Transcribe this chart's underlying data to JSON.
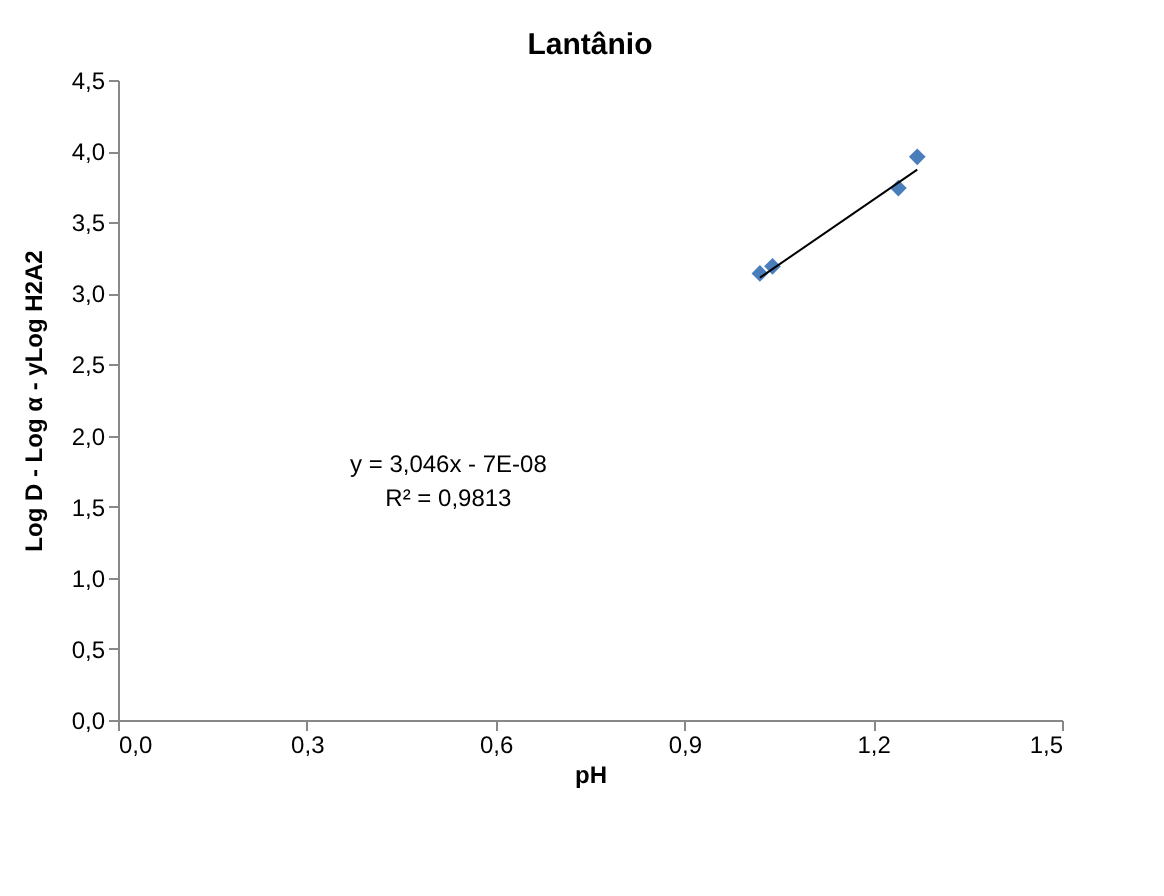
{
  "chart_data": {
    "type": "scatter",
    "title": "Lantânio",
    "xlabel": "pH",
    "ylabel": "Log D - Log α - yLog H2A2",
    "xlim": [
      0,
      1.5
    ],
    "ylim": [
      0,
      4.5
    ],
    "xticks": [
      {
        "value": 0,
        "label": "0,0"
      },
      {
        "value": 0.3,
        "label": "0,3"
      },
      {
        "value": 0.6,
        "label": "0,6"
      },
      {
        "value": 0.9,
        "label": "0,9"
      },
      {
        "value": 1.2,
        "label": "1,2"
      },
      {
        "value": 1.5,
        "label": "1,5"
      }
    ],
    "yticks": [
      {
        "value": 0,
        "label": "0,0"
      },
      {
        "value": 0.5,
        "label": "0,5"
      },
      {
        "value": 1,
        "label": "1,0"
      },
      {
        "value": 1.5,
        "label": "1,5"
      },
      {
        "value": 2,
        "label": "2,0"
      },
      {
        "value": 2.5,
        "label": "2,5"
      },
      {
        "value": 3,
        "label": "3,0"
      },
      {
        "value": 3.5,
        "label": "3,5"
      },
      {
        "value": 4,
        "label": "4,0"
      },
      {
        "value": 4.5,
        "label": "4,5"
      }
    ],
    "grid": false,
    "marker": "diamond",
    "series": [
      {
        "color": "#4a7ebb",
        "x": [
          1.02,
          1.04,
          1.24,
          1.27
        ],
        "values": [
          3.14,
          3.19,
          3.74,
          3.96
        ]
      },
      {
        "type": "line",
        "marker": "none",
        "line_style": "solid",
        "color": "#000000",
        "x": [
          1.02,
          1.27
        ],
        "values": [
          3.11,
          3.87
        ]
      }
    ],
    "annotations": [
      "y = 3,046x - 7E-08",
      "R² = 0,9813"
    ]
  }
}
